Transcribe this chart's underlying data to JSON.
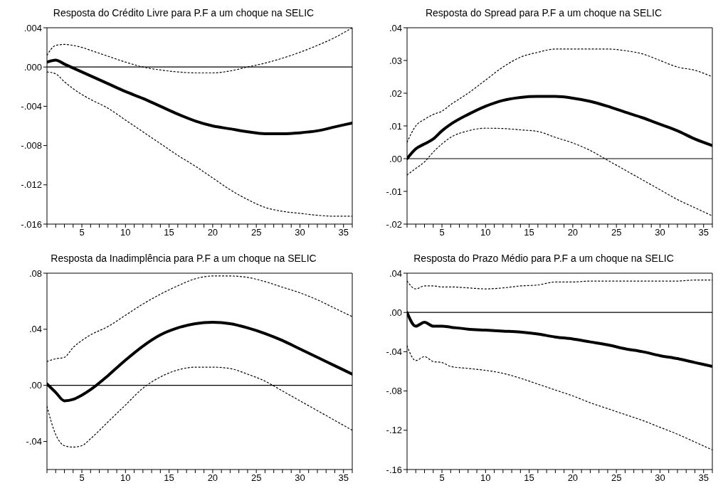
{
  "chart_data": [
    {
      "type": "line",
      "title": "Resposta do Crédito Livre para P.F a um choque na SELIC",
      "x": [
        1,
        2,
        3,
        4,
        5,
        6,
        8,
        10,
        12,
        14,
        16,
        18,
        20,
        22,
        24,
        26,
        28,
        30,
        32,
        34,
        36
      ],
      "xlim": [
        1,
        36
      ],
      "xticks": [
        {
          "value": 1,
          "label": null
        },
        {
          "value": 2,
          "label": null
        },
        {
          "value": 3,
          "label": null
        },
        {
          "value": 4,
          "label": null
        },
        5,
        {
          "value": 6,
          "label": null
        },
        {
          "value": 7,
          "label": null
        },
        {
          "value": 8,
          "label": null
        },
        {
          "value": 9,
          "label": null
        },
        10,
        {
          "value": 11,
          "label": null
        },
        {
          "value": 12,
          "label": null
        },
        {
          "value": 13,
          "label": null
        },
        {
          "value": 14,
          "label": null
        },
        15,
        {
          "value": 16,
          "label": null
        },
        {
          "value": 17,
          "label": null
        },
        {
          "value": 18,
          "label": null
        },
        {
          "value": 19,
          "label": null
        },
        20,
        {
          "value": 21,
          "label": null
        },
        {
          "value": 22,
          "label": null
        },
        {
          "value": 23,
          "label": null
        },
        {
          "value": 24,
          "label": null
        },
        25,
        {
          "value": 26,
          "label": null
        },
        {
          "value": 27,
          "label": null
        },
        {
          "value": 28,
          "label": null
        },
        {
          "value": 29,
          "label": null
        },
        30,
        {
          "value": 31,
          "label": null
        },
        {
          "value": 32,
          "label": null
        },
        {
          "value": 33,
          "label": null
        },
        {
          "value": 34,
          "label": null
        },
        35,
        {
          "value": 36,
          "label": null
        }
      ],
      "ylim": [
        -0.016,
        0.004
      ],
      "yticks": [
        {
          "value": -0.016,
          "label": "-.016"
        },
        {
          "value": -0.012,
          "label": "-.012"
        },
        {
          "value": -0.008,
          "label": "-.008"
        },
        {
          "value": -0.004,
          "label": "-.004"
        },
        {
          "value": 0,
          "label": ".000"
        },
        {
          "value": 0.004,
          "label": ".004"
        }
      ],
      "grid": false,
      "legend": false,
      "ref_lines": [
        {
          "axis": "y",
          "value": 0,
          "color": "#000000"
        }
      ],
      "series": [
        {
          "color": "#000000",
          "line_style": "dotted",
          "values": [
            0.0012,
            0.0022,
            0.0023,
            0.0022,
            0.002,
            0.0017,
            0.0011,
            0.0005,
            0.0,
            -0.0003,
            -0.0005,
            -0.0006,
            -0.0006,
            -0.0004,
            0.0,
            0.0004,
            0.0009,
            0.0015,
            0.0022,
            0.003,
            0.004
          ]
        },
        {
          "color": "#000000",
          "line_style": "solid",
          "values": [
            0.0005,
            0.0007,
            0.0003,
            -0.0001,
            -0.0005,
            -0.0009,
            -0.0017,
            -0.0025,
            -0.0032,
            -0.004,
            -0.0048,
            -0.0055,
            -0.006,
            -0.0063,
            -0.0066,
            -0.0068,
            -0.0068,
            -0.0067,
            -0.0065,
            -0.0061,
            -0.0057
          ]
        },
        {
          "color": "#000000",
          "line_style": "dotted",
          "values": [
            -0.0005,
            -0.0007,
            -0.0015,
            -0.0022,
            -0.0028,
            -0.0033,
            -0.0042,
            -0.0054,
            -0.0066,
            -0.0078,
            -0.009,
            -0.0101,
            -0.0113,
            -0.0125,
            -0.0135,
            -0.0143,
            -0.0147,
            -0.0149,
            -0.0151,
            -0.0152,
            -0.0152
          ]
        }
      ]
    },
    {
      "type": "line",
      "title": "Resposta do Spread para P.F a um choque na SELIC",
      "x": [
        1,
        2,
        3,
        4,
        5,
        6,
        8,
        10,
        12,
        14,
        16,
        18,
        20,
        22,
        24,
        26,
        28,
        30,
        32,
        34,
        36
      ],
      "xlim": [
        1,
        36
      ],
      "xticks": [
        {
          "value": 1,
          "label": null
        },
        {
          "value": 2,
          "label": null
        },
        {
          "value": 3,
          "label": null
        },
        {
          "value": 4,
          "label": null
        },
        5,
        {
          "value": 6,
          "label": null
        },
        {
          "value": 7,
          "label": null
        },
        {
          "value": 8,
          "label": null
        },
        {
          "value": 9,
          "label": null
        },
        10,
        {
          "value": 11,
          "label": null
        },
        {
          "value": 12,
          "label": null
        },
        {
          "value": 13,
          "label": null
        },
        {
          "value": 14,
          "label": null
        },
        15,
        {
          "value": 16,
          "label": null
        },
        {
          "value": 17,
          "label": null
        },
        {
          "value": 18,
          "label": null
        },
        {
          "value": 19,
          "label": null
        },
        20,
        {
          "value": 21,
          "label": null
        },
        {
          "value": 22,
          "label": null
        },
        {
          "value": 23,
          "label": null
        },
        {
          "value": 24,
          "label": null
        },
        25,
        {
          "value": 26,
          "label": null
        },
        {
          "value": 27,
          "label": null
        },
        {
          "value": 28,
          "label": null
        },
        {
          "value": 29,
          "label": null
        },
        30,
        {
          "value": 31,
          "label": null
        },
        {
          "value": 32,
          "label": null
        },
        {
          "value": 33,
          "label": null
        },
        {
          "value": 34,
          "label": null
        },
        35,
        {
          "value": 36,
          "label": null
        }
      ],
      "ylim": [
        -0.02,
        0.04
      ],
      "yticks": [
        {
          "value": -0.02,
          "label": "-.02"
        },
        {
          "value": -0.01,
          "label": "-.01"
        },
        {
          "value": 0,
          "label": ".00"
        },
        {
          "value": 0.01,
          "label": ".01"
        },
        {
          "value": 0.02,
          "label": ".02"
        },
        {
          "value": 0.03,
          "label": ".03"
        },
        {
          "value": 0.04,
          "label": ".04"
        }
      ],
      "grid": false,
      "legend": false,
      "ref_lines": [
        {
          "axis": "y",
          "value": 0,
          "color": "#000000"
        }
      ],
      "series": [
        {
          "color": "#000000",
          "line_style": "dotted",
          "values": [
            0.005,
            0.01,
            0.012,
            0.0135,
            0.0145,
            0.0165,
            0.02,
            0.024,
            0.028,
            0.031,
            0.0325,
            0.0335,
            0.0335,
            0.0335,
            0.0335,
            0.033,
            0.032,
            0.03,
            0.028,
            0.027,
            0.025
          ]
        },
        {
          "color": "#000000",
          "line_style": "solid",
          "values": [
            0.0,
            0.003,
            0.0045,
            0.006,
            0.0085,
            0.0105,
            0.0135,
            0.016,
            0.0178,
            0.0187,
            0.019,
            0.019,
            0.0185,
            0.0175,
            0.016,
            0.0142,
            0.0125,
            0.0105,
            0.0085,
            0.006,
            0.004
          ]
        },
        {
          "color": "#000000",
          "line_style": "dotted",
          "values": [
            -0.005,
            -0.003,
            -0.001,
            0.002,
            0.0045,
            0.0065,
            0.0085,
            0.0093,
            0.0092,
            0.0088,
            0.0083,
            0.0065,
            0.0048,
            0.0025,
            -0.0005,
            -0.0035,
            -0.0065,
            -0.0095,
            -0.0125,
            -0.015,
            -0.0175
          ]
        }
      ]
    },
    {
      "type": "line",
      "title": "Resposta da Inadimplência para P.F a um choque na SELIC",
      "x": [
        1,
        2,
        3,
        4,
        5,
        6,
        8,
        10,
        12,
        14,
        16,
        18,
        20,
        22,
        24,
        26,
        28,
        30,
        32,
        34,
        36
      ],
      "xlim": [
        1,
        36
      ],
      "xticks": [
        {
          "value": 1,
          "label": null
        },
        {
          "value": 2,
          "label": null
        },
        {
          "value": 3,
          "label": null
        },
        {
          "value": 4,
          "label": null
        },
        5,
        {
          "value": 6,
          "label": null
        },
        {
          "value": 7,
          "label": null
        },
        {
          "value": 8,
          "label": null
        },
        {
          "value": 9,
          "label": null
        },
        10,
        {
          "value": 11,
          "label": null
        },
        {
          "value": 12,
          "label": null
        },
        {
          "value": 13,
          "label": null
        },
        {
          "value": 14,
          "label": null
        },
        15,
        {
          "value": 16,
          "label": null
        },
        {
          "value": 17,
          "label": null
        },
        {
          "value": 18,
          "label": null
        },
        {
          "value": 19,
          "label": null
        },
        20,
        {
          "value": 21,
          "label": null
        },
        {
          "value": 22,
          "label": null
        },
        {
          "value": 23,
          "label": null
        },
        {
          "value": 24,
          "label": null
        },
        25,
        {
          "value": 26,
          "label": null
        },
        {
          "value": 27,
          "label": null
        },
        {
          "value": 28,
          "label": null
        },
        {
          "value": 29,
          "label": null
        },
        30,
        {
          "value": 31,
          "label": null
        },
        {
          "value": 32,
          "label": null
        },
        {
          "value": 33,
          "label": null
        },
        {
          "value": 34,
          "label": null
        },
        35,
        {
          "value": 36,
          "label": null
        }
      ],
      "ylim": [
        -0.06,
        0.08
      ],
      "yticks": [
        {
          "value": -0.04,
          "label": "-.04"
        },
        {
          "value": 0,
          "label": ".00"
        },
        {
          "value": 0.04,
          "label": ".04"
        },
        {
          "value": 0.08,
          "label": ".08"
        }
      ],
      "grid": false,
      "legend": false,
      "ref_lines": [
        {
          "axis": "y",
          "value": 0,
          "color": "#000000"
        }
      ],
      "series": [
        {
          "color": "#000000",
          "line_style": "dotted",
          "values": [
            0.017,
            0.019,
            0.02,
            0.027,
            0.032,
            0.036,
            0.042,
            0.05,
            0.058,
            0.065,
            0.071,
            0.076,
            0.078,
            0.078,
            0.077,
            0.074,
            0.07,
            0.066,
            0.061,
            0.055,
            0.049
          ]
        },
        {
          "color": "#000000",
          "line_style": "solid",
          "values": [
            0.001,
            -0.005,
            -0.011,
            -0.01,
            -0.007,
            -0.003,
            0.007,
            0.018,
            0.028,
            0.036,
            0.041,
            0.044,
            0.045,
            0.044,
            0.041,
            0.037,
            0.032,
            0.026,
            0.02,
            0.014,
            0.008
          ]
        },
        {
          "color": "#000000",
          "line_style": "dotted",
          "values": [
            -0.015,
            -0.035,
            -0.043,
            -0.044,
            -0.043,
            -0.038,
            -0.026,
            -0.014,
            -0.002,
            0.006,
            0.011,
            0.013,
            0.013,
            0.012,
            0.008,
            0.003,
            -0.004,
            -0.011,
            -0.018,
            -0.025,
            -0.032
          ]
        }
      ]
    },
    {
      "type": "line",
      "title": "Resposta do Prazo Médio para P.F a um choque na SELIC",
      "x": [
        1,
        2,
        3,
        4,
        5,
        6,
        8,
        10,
        12,
        14,
        16,
        18,
        20,
        22,
        24,
        26,
        28,
        30,
        32,
        34,
        36
      ],
      "xlim": [
        1,
        36
      ],
      "xticks": [
        {
          "value": 1,
          "label": null
        },
        {
          "value": 2,
          "label": null
        },
        {
          "value": 3,
          "label": null
        },
        {
          "value": 4,
          "label": null
        },
        5,
        {
          "value": 6,
          "label": null
        },
        {
          "value": 7,
          "label": null
        },
        {
          "value": 8,
          "label": null
        },
        {
          "value": 9,
          "label": null
        },
        10,
        {
          "value": 11,
          "label": null
        },
        {
          "value": 12,
          "label": null
        },
        {
          "value": 13,
          "label": null
        },
        {
          "value": 14,
          "label": null
        },
        15,
        {
          "value": 16,
          "label": null
        },
        {
          "value": 17,
          "label": null
        },
        {
          "value": 18,
          "label": null
        },
        {
          "value": 19,
          "label": null
        },
        20,
        {
          "value": 21,
          "label": null
        },
        {
          "value": 22,
          "label": null
        },
        {
          "value": 23,
          "label": null
        },
        {
          "value": 24,
          "label": null
        },
        25,
        {
          "value": 26,
          "label": null
        },
        {
          "value": 27,
          "label": null
        },
        {
          "value": 28,
          "label": null
        },
        {
          "value": 29,
          "label": null
        },
        30,
        {
          "value": 31,
          "label": null
        },
        {
          "value": 32,
          "label": null
        },
        {
          "value": 33,
          "label": null
        },
        {
          "value": 34,
          "label": null
        },
        35,
        {
          "value": 36,
          "label": null
        }
      ],
      "ylim": [
        -0.16,
        0.04
      ],
      "yticks": [
        {
          "value": -0.16,
          "label": "-.16"
        },
        {
          "value": -0.12,
          "label": "-.12"
        },
        {
          "value": -0.08,
          "label": "-.08"
        },
        {
          "value": -0.04,
          "label": "-.04"
        },
        {
          "value": 0,
          "label": ".00"
        },
        {
          "value": 0.04,
          "label": ".04"
        }
      ],
      "grid": false,
      "legend": false,
      "ref_lines": [
        {
          "axis": "y",
          "value": 0,
          "color": "#000000"
        }
      ],
      "series": [
        {
          "color": "#000000",
          "line_style": "dotted",
          "values": [
            0.032,
            0.024,
            0.027,
            0.027,
            0.026,
            0.026,
            0.025,
            0.024,
            0.025,
            0.027,
            0.028,
            0.031,
            0.031,
            0.032,
            0.032,
            0.032,
            0.032,
            0.032,
            0.032,
            0.033,
            0.033
          ]
        },
        {
          "color": "#000000",
          "line_style": "solid",
          "values": [
            0.0,
            -0.014,
            -0.01,
            -0.014,
            -0.014,
            -0.015,
            -0.017,
            -0.018,
            -0.019,
            -0.02,
            -0.022,
            -0.025,
            -0.027,
            -0.03,
            -0.033,
            -0.037,
            -0.04,
            -0.044,
            -0.047,
            -0.051,
            -0.055
          ]
        },
        {
          "color": "#000000",
          "line_style": "dotted",
          "values": [
            -0.034,
            -0.049,
            -0.045,
            -0.05,
            -0.051,
            -0.055,
            -0.057,
            -0.059,
            -0.062,
            -0.067,
            -0.073,
            -0.079,
            -0.085,
            -0.092,
            -0.098,
            -0.104,
            -0.11,
            -0.117,
            -0.124,
            -0.132,
            -0.14
          ]
        }
      ]
    }
  ]
}
